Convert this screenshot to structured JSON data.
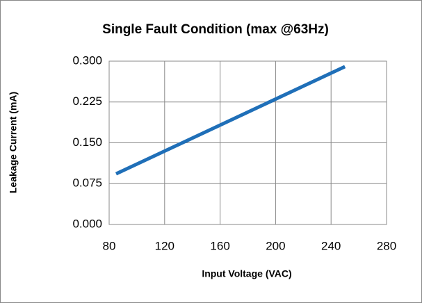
{
  "chart_data": {
    "type": "line",
    "title": "Single Fault Condition (max @63Hz)",
    "x_label": "Input Voltage (VAC)",
    "y_label": "Leakage Current (mA)",
    "x": [
      85,
      250
    ],
    "series": [
      {
        "name": "Leakage Current",
        "color": "#1f6fb8",
        "values": [
          0.093,
          0.29
        ]
      }
    ],
    "xlim": [
      80,
      280
    ],
    "xticks": [
      80,
      120,
      160,
      200,
      240,
      280
    ],
    "ylim": [
      0,
      0.3
    ],
    "yticks": [
      {
        "value": 0,
        "label": "0.000"
      },
      0.075,
      {
        "value": 0.15,
        "label": "0.150"
      },
      0.225,
      {
        "value": 0.3,
        "label": "0.300"
      }
    ],
    "grid": true
  }
}
